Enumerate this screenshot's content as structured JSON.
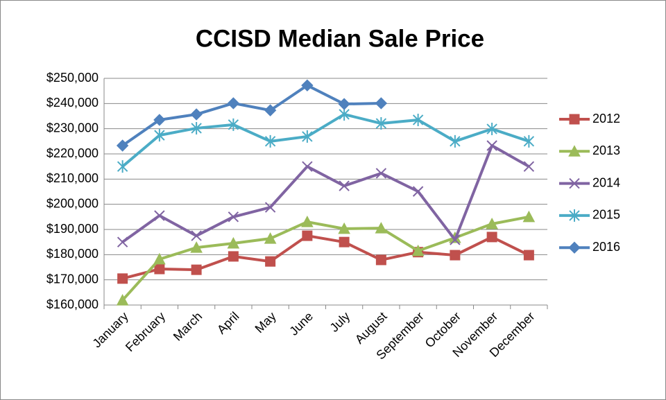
{
  "chart_data": {
    "type": "line",
    "title": "CCISD Median Sale Price",
    "categories": [
      "January",
      "February",
      "March",
      "April",
      "May",
      "June",
      "July",
      "August",
      "September",
      "October",
      "November",
      "December"
    ],
    "series": [
      {
        "name": "2012",
        "color": "#c0504d",
        "marker": "square",
        "values": [
          170500,
          174300,
          174000,
          179300,
          177300,
          187500,
          185000,
          177900,
          181000,
          179800,
          187000,
          179800
        ]
      },
      {
        "name": "2013",
        "color": "#9bbb59",
        "marker": "triangle",
        "values": [
          161900,
          178200,
          182800,
          184500,
          186400,
          193000,
          190300,
          190500,
          181500,
          186700,
          192200,
          195000
        ]
      },
      {
        "name": "2014",
        "color": "#8064a2",
        "marker": "x",
        "values": [
          185000,
          195500,
          187500,
          195000,
          198800,
          215000,
          207300,
          212300,
          205100,
          185900,
          223300,
          215000
        ]
      },
      {
        "name": "2015",
        "color": "#4bacc6",
        "marker": "asterisk",
        "values": [
          215000,
          227400,
          230200,
          231600,
          225000,
          226900,
          235700,
          232100,
          233500,
          225000,
          229900,
          225000
        ]
      },
      {
        "name": "2016",
        "color": "#4f81bd",
        "marker": "diamond",
        "values": [
          223300,
          233500,
          235700,
          240100,
          237300,
          247200,
          239800,
          240100,
          null,
          null,
          null,
          null
        ]
      }
    ],
    "ylim": [
      160000,
      250000
    ],
    "yticks": [
      {
        "value": 160000,
        "label": "$160,000"
      },
      {
        "value": 170000,
        "label": "$170,000"
      },
      {
        "value": 180000,
        "label": "$180,000"
      },
      {
        "value": 190000,
        "label": "$190,000"
      },
      {
        "value": 200000,
        "label": "$200,000"
      },
      {
        "value": 210000,
        "label": "$210,000"
      },
      {
        "value": 220000,
        "label": "$220,000"
      },
      {
        "value": 230000,
        "label": "$230,000"
      },
      {
        "value": 240000,
        "label": "$240,000"
      },
      {
        "value": 250000,
        "label": "$250,000"
      }
    ],
    "grid": true,
    "legend": "right"
  }
}
